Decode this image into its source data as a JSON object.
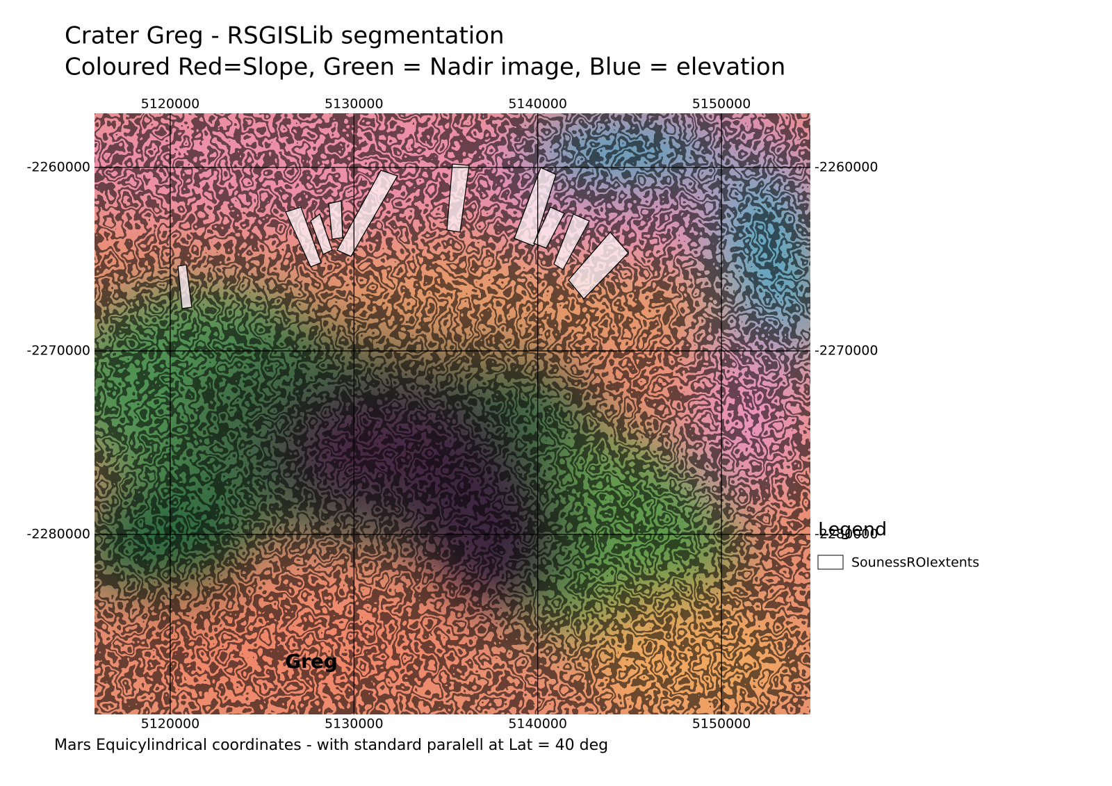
{
  "title": [
    "Crater Greg - RSGISLib segmentation",
    "Coloured Red=Slope, Green = Nadir image, Blue = elevation"
  ],
  "map": {
    "xlim": [
      5115880,
      5154840
    ],
    "ylim": [
      -2289810,
      -2257050
    ],
    "xticks": [
      5120000,
      5130000,
      5140000,
      5150000
    ],
    "yticks": [
      -2260000,
      -2270000,
      -2280000
    ],
    "place_label": "Greg"
  },
  "legend": {
    "title": "Legend",
    "items": [
      "SounessROIextents"
    ]
  },
  "footer": "Mars Equicylindrical coordinates - with standard paralell at Lat = 40 deg"
}
